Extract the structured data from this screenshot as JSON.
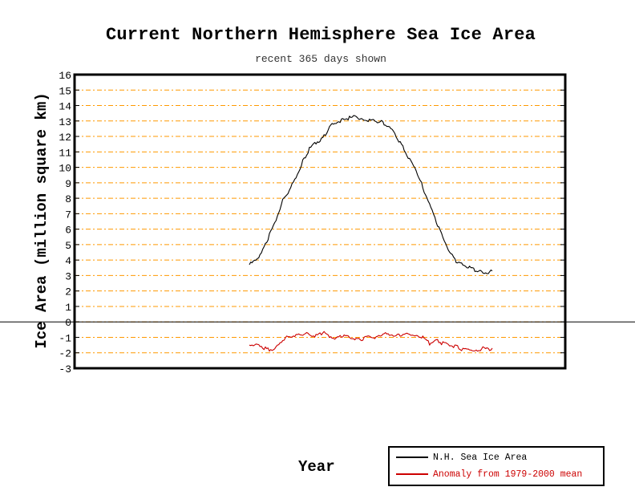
{
  "chart_data": {
    "type": "line",
    "title": "Current Northern Hemisphere Sea Ice Area",
    "subtitle": "recent 365 days shown",
    "xlabel": "Year",
    "ylabel": "Ice Area (million square km)",
    "ylim": [
      -3,
      16
    ],
    "yticks": [
      "16",
      "15",
      "14",
      "13",
      "12",
      "11",
      "10",
      "9",
      "8",
      "7",
      "6",
      "5",
      "4",
      "3",
      "2",
      "1",
      "0",
      "-1",
      "-2",
      "-3"
    ],
    "grid": true,
    "grid_color": "#ff9900",
    "legend_position": "bottom-right",
    "series": [
      {
        "name": "N.H. Sea Ice Area",
        "color": "#000000",
        "x": [
          0,
          10,
          20,
          30,
          40,
          50,
          60,
          70,
          80,
          90,
          100,
          110,
          120,
          130,
          140,
          150,
          160,
          170,
          180,
          190,
          200,
          210,
          220,
          230,
          240,
          250,
          260,
          270,
          280,
          290,
          300,
          310,
          320,
          330,
          340,
          350,
          360,
          364
        ],
        "values": [
          3.7,
          4.0,
          4.6,
          5.6,
          6.6,
          7.9,
          8.5,
          9.4,
          10.4,
          11.2,
          11.6,
          11.9,
          12.6,
          12.9,
          13.1,
          13.2,
          13.3,
          13.1,
          13.0,
          13.0,
          12.9,
          12.6,
          12.0,
          11.3,
          10.5,
          9.8,
          8.7,
          7.6,
          6.5,
          5.5,
          4.5,
          3.9,
          3.7,
          3.5,
          3.3,
          3.2,
          3.2,
          3.3
        ]
      },
      {
        "name": "Anomaly from 1979-2000 mean",
        "color": "#cc0000",
        "x": [
          0,
          10,
          20,
          30,
          40,
          50,
          60,
          70,
          80,
          90,
          100,
          110,
          120,
          130,
          140,
          150,
          160,
          170,
          180,
          190,
          200,
          210,
          220,
          230,
          240,
          250,
          260,
          270,
          280,
          290,
          300,
          310,
          320,
          330,
          340,
          350,
          360,
          364
        ],
        "values": [
          -1.4,
          -1.5,
          -1.7,
          -1.8,
          -1.7,
          -1.2,
          -0.9,
          -0.9,
          -0.8,
          -0.8,
          -0.9,
          -0.7,
          -0.9,
          -1.1,
          -0.9,
          -1.0,
          -1.1,
          -1.1,
          -0.9,
          -1.0,
          -0.8,
          -0.8,
          -0.9,
          -0.9,
          -0.8,
          -0.9,
          -1.0,
          -1.4,
          -1.2,
          -1.4,
          -1.5,
          -1.6,
          -1.8,
          -1.8,
          -1.9,
          -1.7,
          -1.8,
          -1.7
        ]
      }
    ]
  }
}
